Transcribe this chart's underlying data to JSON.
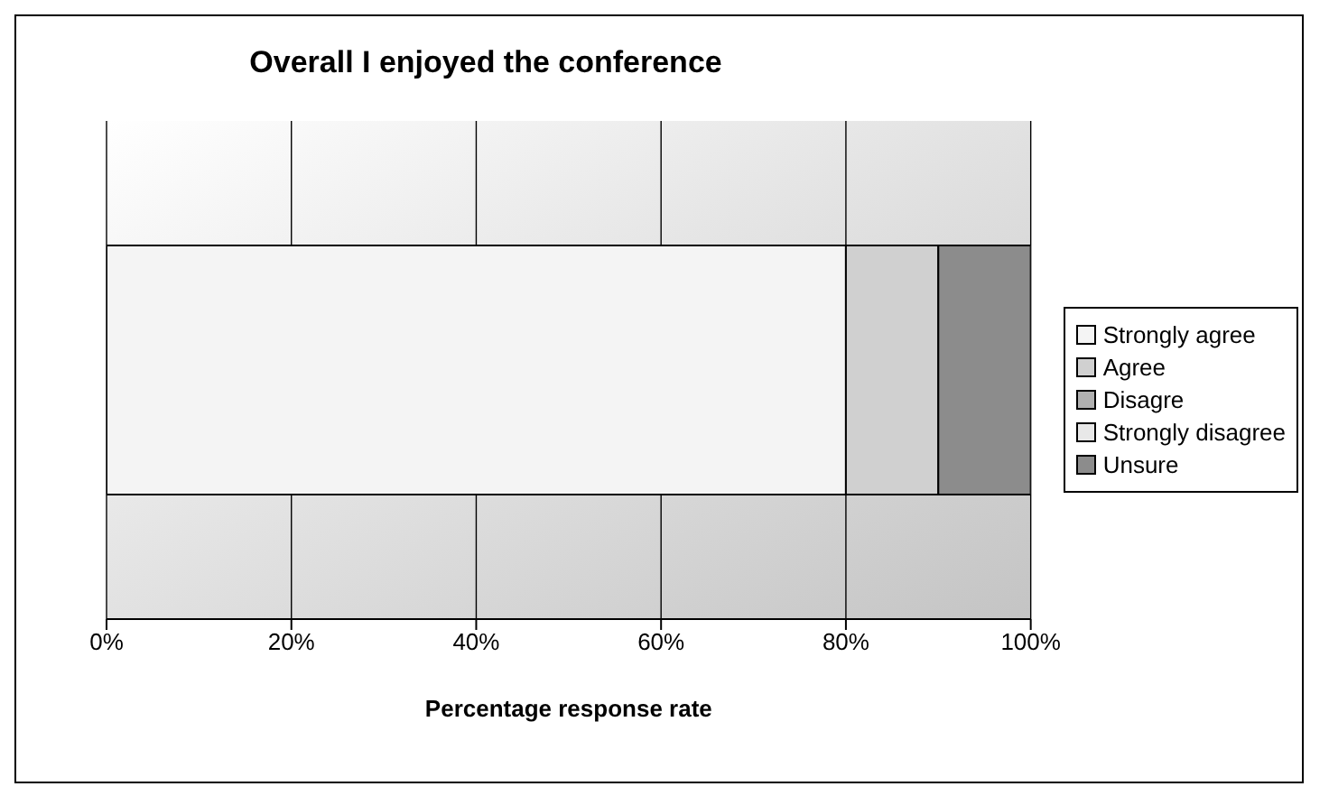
{
  "chart_data": {
    "type": "bar",
    "orientation": "horizontal",
    "stacked": true,
    "title": "Overall I enjoyed the conference",
    "xlabel": "Percentage response rate",
    "categories": [
      null
    ],
    "series": [
      {
        "name": "Strongly agree",
        "color": "#f4f4f4",
        "values": [
          80
        ]
      },
      {
        "name": "Agree",
        "color": "#d0d0d0",
        "values": [
          10
        ]
      },
      {
        "name": "Disagre",
        "color": "#b0b0b0",
        "values": [
          0
        ]
      },
      {
        "name": "Strongly disagree",
        "color": "#e8e8e8",
        "values": [
          0
        ]
      },
      {
        "name": "Unsure",
        "color": "#8c8c8c",
        "values": [
          10
        ]
      }
    ],
    "xlim": [
      0,
      100
    ],
    "xticks": [
      {
        "value": 0,
        "label": "0%"
      },
      {
        "value": 20,
        "label": "20%"
      },
      {
        "value": 40,
        "label": "40%"
      },
      {
        "value": 60,
        "label": "60%"
      },
      {
        "value": 80,
        "label": "80%"
      },
      {
        "value": 100,
        "label": "100%"
      }
    ],
    "grid": "x",
    "legend": "right"
  }
}
